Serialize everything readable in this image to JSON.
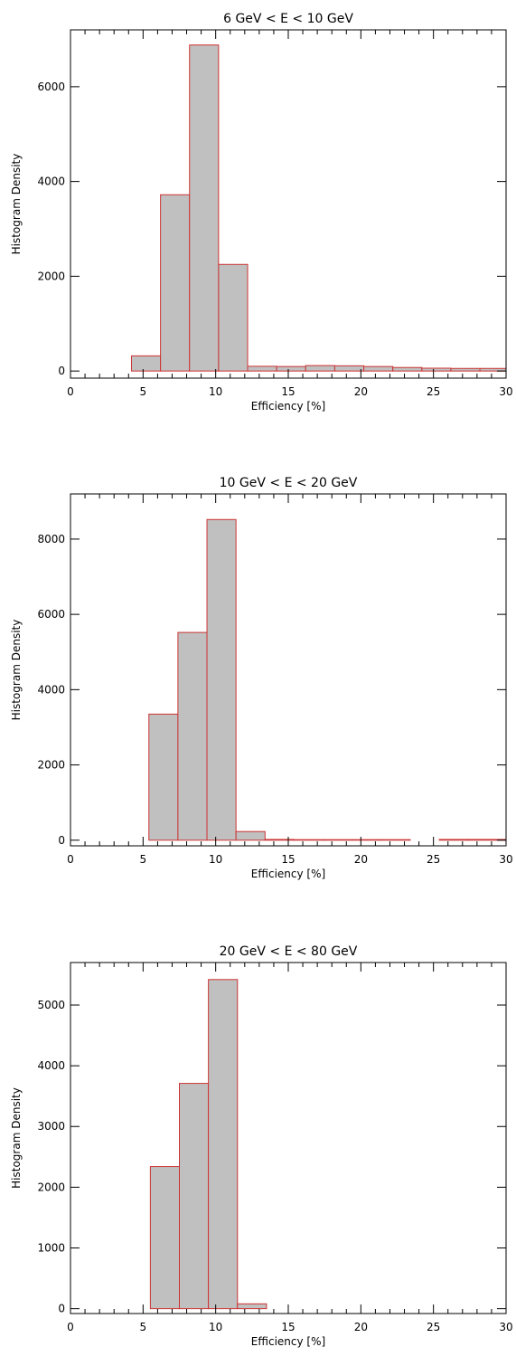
{
  "chart_data": [
    {
      "type": "bar",
      "title": "6 GeV < E < 10 GeV",
      "xlabel": "Efficiency [%]",
      "ylabel": "Histogram Density",
      "xlim": [
        0,
        30
      ],
      "ylim": [
        -150,
        7200
      ],
      "xticks": [
        0,
        5,
        10,
        15,
        20,
        25,
        30
      ],
      "yticks": [
        0,
        2000,
        4000,
        6000
      ],
      "grid": false,
      "bar_color": "#c0c0c0",
      "edge_color": "#cc3333",
      "bins": [
        {
          "x0": 0.0,
          "x1": 2.0,
          "value": 0
        },
        {
          "x0": 2.0,
          "x1": 4.2,
          "value": 0
        },
        {
          "x0": 4.2,
          "x1": 6.2,
          "value": 320
        },
        {
          "x0": 6.2,
          "x1": 8.2,
          "value": 3720
        },
        {
          "x0": 8.2,
          "x1": 10.2,
          "value": 6880
        },
        {
          "x0": 10.2,
          "x1": 12.2,
          "value": 2250
        },
        {
          "x0": 12.2,
          "x1": 14.2,
          "value": 100
        },
        {
          "x0": 14.2,
          "x1": 16.2,
          "value": 95
        },
        {
          "x0": 16.2,
          "x1": 18.2,
          "value": 115
        },
        {
          "x0": 18.2,
          "x1": 20.2,
          "value": 110
        },
        {
          "x0": 20.2,
          "x1": 22.2,
          "value": 95
        },
        {
          "x0": 22.2,
          "x1": 24.2,
          "value": 75
        },
        {
          "x0": 24.2,
          "x1": 26.2,
          "value": 60
        },
        {
          "x0": 26.2,
          "x1": 28.2,
          "value": 55
        },
        {
          "x0": 28.2,
          "x1": 30.0,
          "value": 55
        }
      ]
    },
    {
      "type": "bar",
      "title": "10 GeV < E < 20 GeV",
      "xlabel": "Efficiency [%]",
      "ylabel": "Histogram Density",
      "xlim": [
        0,
        30
      ],
      "ylim": [
        -150,
        9200
      ],
      "xticks": [
        0,
        5,
        10,
        15,
        20,
        25,
        30
      ],
      "yticks": [
        0,
        2000,
        4000,
        6000,
        8000
      ],
      "grid": false,
      "bar_color": "#c0c0c0",
      "edge_color": "#cc3333",
      "bins": [
        {
          "x0": 0.0,
          "x1": 3.4,
          "value": 0
        },
        {
          "x0": 3.4,
          "x1": 5.4,
          "value": 0
        },
        {
          "x0": 5.4,
          "x1": 7.4,
          "value": 3350
        },
        {
          "x0": 7.4,
          "x1": 9.4,
          "value": 5520
        },
        {
          "x0": 9.4,
          "x1": 11.4,
          "value": 8520
        },
        {
          "x0": 11.4,
          "x1": 13.4,
          "value": 230
        },
        {
          "x0": 13.4,
          "x1": 15.4,
          "value": 20
        },
        {
          "x0": 15.4,
          "x1": 17.4,
          "value": 15
        },
        {
          "x0": 17.4,
          "x1": 19.4,
          "value": 15
        },
        {
          "x0": 19.4,
          "x1": 21.4,
          "value": 15
        },
        {
          "x0": 21.4,
          "x1": 23.4,
          "value": 15
        },
        {
          "x0": 23.4,
          "x1": 25.4,
          "value": 0
        },
        {
          "x0": 25.4,
          "x1": 27.4,
          "value": 20
        },
        {
          "x0": 27.4,
          "x1": 30.0,
          "value": 20
        }
      ]
    },
    {
      "type": "bar",
      "title": "20 GeV < E < 80 GeV",
      "xlabel": "Efficiency [%]",
      "ylabel": "Histogram Density",
      "xlim": [
        0,
        30
      ],
      "ylim": [
        -80,
        5700
      ],
      "xticks": [
        0,
        5,
        10,
        15,
        20,
        25,
        30
      ],
      "yticks": [
        0,
        1000,
        2000,
        3000,
        4000,
        5000
      ],
      "grid": false,
      "bar_color": "#c0c0c0",
      "edge_color": "#cc3333",
      "bins": [
        {
          "x0": 5.5,
          "x1": 7.5,
          "value": 2340
        },
        {
          "x0": 7.5,
          "x1": 9.5,
          "value": 3710
        },
        {
          "x0": 9.5,
          "x1": 11.5,
          "value": 5420
        },
        {
          "x0": 11.5,
          "x1": 13.5,
          "value": 80
        }
      ]
    }
  ]
}
